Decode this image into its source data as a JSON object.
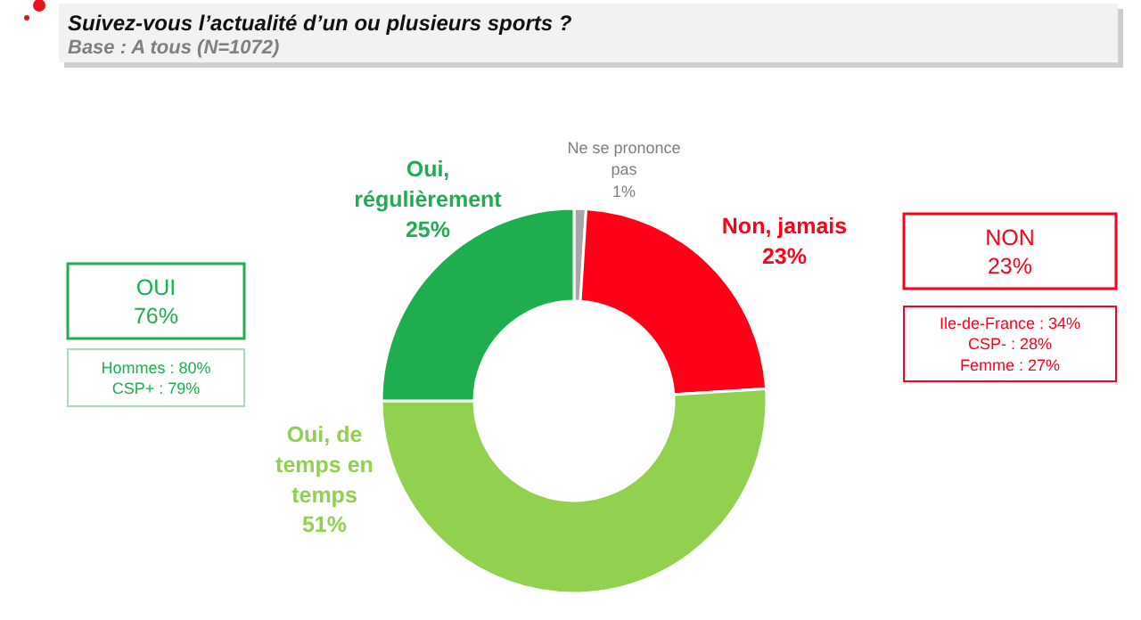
{
  "chart_data": {
    "type": "donut",
    "title": "Suivez-vous l’actualité d’un ou plusieurs sports ?",
    "subtitle": "Base : A tous (N=1072)",
    "categories": [
      "Ne se prononce pas",
      "Non, jamais",
      "Oui, de temps en temps",
      "Oui, régulièrement"
    ],
    "values": [
      1,
      23,
      51,
      25
    ],
    "colors": [
      "#a6a6a6",
      "#ff0019",
      "#92d050",
      "#1fad50"
    ],
    "value_labels": [
      "1%",
      "23%",
      "51%",
      "25%"
    ],
    "annotations": [
      "OUI\n76%",
      "Hommes : 80%\nCSP+ : 79%",
      "NON\n23%",
      "Ile-de-France : 34%\nCSP- : 28%\nFemme : 27%"
    ]
  }
}
